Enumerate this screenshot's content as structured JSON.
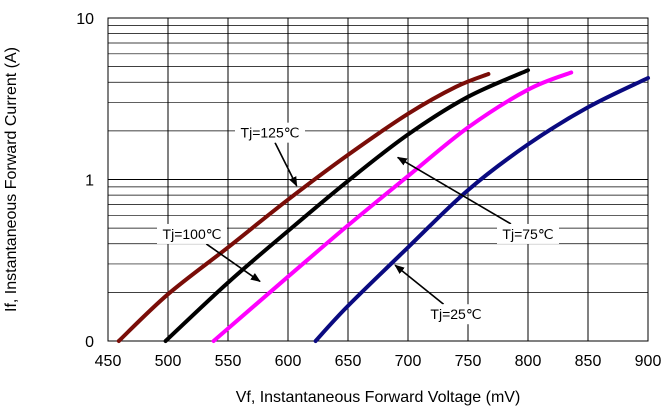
{
  "chart_data": {
    "type": "line",
    "title": "",
    "xlabel": "Vf, Instantaneous Forward  Voltage (mV)",
    "ylabel": "If, Instantaneous  Forward Current (A)",
    "xlim": [
      450,
      900
    ],
    "ylim": [
      0.1,
      10
    ],
    "yscale": "log",
    "x_ticks": [
      "450",
      "500",
      "550",
      "600",
      "650",
      "700",
      "750",
      "800",
      "850",
      "900"
    ],
    "y_ticks": [
      {
        "value": 0.1,
        "label": "0"
      },
      {
        "value": 1,
        "label": "1"
      },
      {
        "value": 10,
        "label": "10"
      }
    ],
    "grid": true,
    "series": [
      {
        "name": "Tj=125℃",
        "color": "#7a0d08",
        "points": [
          [
            459,
            0.1
          ],
          [
            500,
            0.195
          ],
          [
            550,
            0.38
          ],
          [
            600,
            0.75
          ],
          [
            650,
            1.42
          ],
          [
            700,
            2.55
          ],
          [
            740,
            3.75
          ],
          [
            767,
            4.5
          ]
        ]
      },
      {
        "name": "Tj=100℃",
        "color": "#000000",
        "points": [
          [
            498,
            0.1
          ],
          [
            550,
            0.23
          ],
          [
            600,
            0.48
          ],
          [
            650,
            0.98
          ],
          [
            700,
            1.9
          ],
          [
            750,
            3.25
          ],
          [
            800,
            4.75
          ]
        ]
      },
      {
        "name": "Tj=75℃",
        "color": "#ff00ff",
        "points": [
          [
            538,
            0.1
          ],
          [
            600,
            0.25
          ],
          [
            650,
            0.52
          ],
          [
            700,
            1.05
          ],
          [
            750,
            2.1
          ],
          [
            800,
            3.6
          ],
          [
            836,
            4.6
          ]
        ]
      },
      {
        "name": "Tj=25℃",
        "color": "#0a0a80",
        "points": [
          [
            623,
            0.1
          ],
          [
            650,
            0.165
          ],
          [
            700,
            0.38
          ],
          [
            750,
            0.86
          ],
          [
            800,
            1.65
          ],
          [
            850,
            2.8
          ],
          [
            900,
            4.25
          ]
        ]
      }
    ],
    "annotations": [
      {
        "text": "Tj=125℃",
        "series": 0,
        "label_xy": [
          585,
          1.95
        ],
        "target_xy": [
          608,
          0.89
        ]
      },
      {
        "text": "Tj=100℃",
        "series": 1,
        "label_xy": [
          520,
          0.46
        ],
        "target_xy": [
          578,
          0.23
        ]
      },
      {
        "text": "Tj=75℃",
        "series": 2,
        "label_xy": [
          800,
          0.46
        ],
        "target_xy": [
          690,
          1.39
        ]
      },
      {
        "text": "Tj=25℃",
        "series": 3,
        "label_xy": [
          740,
          0.1465
        ],
        "target_xy": [
          688,
          0.3
        ]
      }
    ]
  }
}
